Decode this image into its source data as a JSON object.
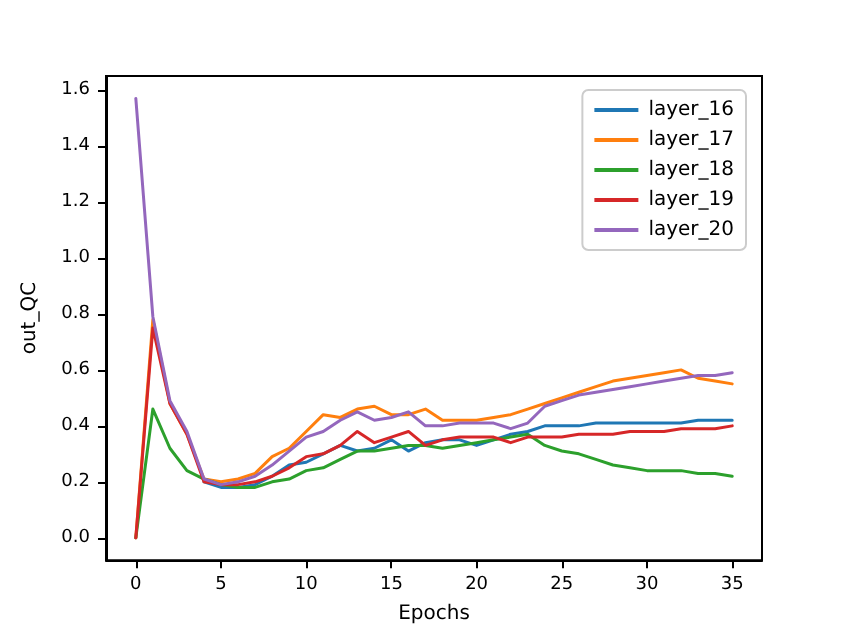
{
  "chart_data": {
    "type": "line",
    "xlabel": "Epochs",
    "ylabel": "out_QC",
    "x": [
      0,
      1,
      2,
      3,
      4,
      5,
      6,
      7,
      8,
      9,
      10,
      11,
      12,
      13,
      14,
      15,
      16,
      17,
      18,
      19,
      20,
      21,
      22,
      23,
      24,
      25,
      26,
      27,
      28,
      29,
      30,
      31,
      32,
      33,
      34,
      35
    ],
    "series": [
      {
        "name": "layer_16",
        "color": "#1f77b4",
        "values": [
          null,
          null,
          null,
          null,
          0.2,
          0.18,
          0.18,
          0.19,
          0.22,
          0.26,
          0.27,
          0.3,
          0.33,
          0.31,
          0.32,
          0.35,
          0.31,
          0.34,
          0.35,
          0.35,
          0.33,
          0.35,
          0.37,
          0.38,
          0.4,
          0.4,
          0.4,
          0.41,
          0.41,
          0.41,
          0.41,
          0.41,
          0.41,
          0.42,
          0.42,
          0.42
        ]
      },
      {
        "name": "layer_17",
        "color": "#ff7f0e",
        "values": [
          0,
          0.78,
          0.48,
          0.37,
          0.21,
          0.2,
          0.21,
          0.23,
          0.29,
          0.32,
          0.38,
          0.44,
          0.43,
          0.46,
          0.47,
          0.44,
          0.44,
          0.46,
          0.42,
          0.42,
          0.42,
          0.43,
          0.44,
          0.46,
          0.48,
          0.5,
          0.52,
          0.54,
          0.56,
          0.57,
          0.58,
          0.59,
          0.6,
          0.57,
          0.56,
          0.55
        ]
      },
      {
        "name": "layer_18",
        "color": "#2ca02c",
        "values": [
          0,
          0.46,
          0.32,
          0.24,
          0.21,
          0.19,
          0.18,
          0.18,
          0.2,
          0.21,
          0.24,
          0.25,
          0.28,
          0.31,
          0.31,
          0.32,
          0.33,
          0.33,
          0.32,
          0.33,
          0.34,
          0.35,
          0.36,
          0.37,
          0.33,
          0.31,
          0.3,
          0.28,
          0.26,
          0.25,
          0.24,
          0.24,
          0.24,
          0.23,
          0.23,
          0.22
        ]
      },
      {
        "name": "layer_19",
        "color": "#d62728",
        "values": [
          0,
          0.75,
          0.48,
          0.37,
          0.2,
          0.19,
          0.19,
          0.2,
          0.22,
          0.25,
          0.29,
          0.3,
          0.33,
          0.38,
          0.34,
          0.36,
          0.38,
          0.33,
          0.35,
          0.36,
          0.36,
          0.36,
          0.34,
          0.36,
          0.36,
          0.36,
          0.37,
          0.37,
          0.37,
          0.38,
          0.38,
          0.38,
          0.39,
          0.39,
          0.39,
          0.4
        ]
      },
      {
        "name": "layer_20",
        "color": "#9467bd",
        "values": [
          1.57,
          0.79,
          0.49,
          0.38,
          0.21,
          0.19,
          0.2,
          0.22,
          0.26,
          0.31,
          0.36,
          0.38,
          0.42,
          0.45,
          0.42,
          0.43,
          0.45,
          0.4,
          0.4,
          0.41,
          0.41,
          0.41,
          0.39,
          0.41,
          0.47,
          0.49,
          0.51,
          0.52,
          0.53,
          0.54,
          0.55,
          0.56,
          0.57,
          0.58,
          0.58,
          0.59
        ]
      }
    ],
    "xlim": [
      -1.75,
      36.75
    ],
    "xticks": [
      0,
      5,
      10,
      15,
      20,
      25,
      30,
      35
    ],
    "ylim": [
      -0.08,
      1.65
    ],
    "yticks": [
      {
        "value": 0,
        "label": "0.0"
      },
      {
        "value": 0.2,
        "label": "0.2"
      },
      {
        "value": 0.4,
        "label": "0.4"
      },
      {
        "value": 0.6,
        "label": "0.6"
      },
      {
        "value": 0.8,
        "label": "0.8"
      },
      {
        "value": 1,
        "label": "1.0"
      },
      {
        "value": 1.2,
        "label": "1.2"
      },
      {
        "value": 1.4,
        "label": "1.4"
      },
      {
        "value": 1.6,
        "label": "1.6"
      }
    ],
    "legend": "top right",
    "grid": false,
    "marker": "none",
    "line_style": "solid"
  }
}
